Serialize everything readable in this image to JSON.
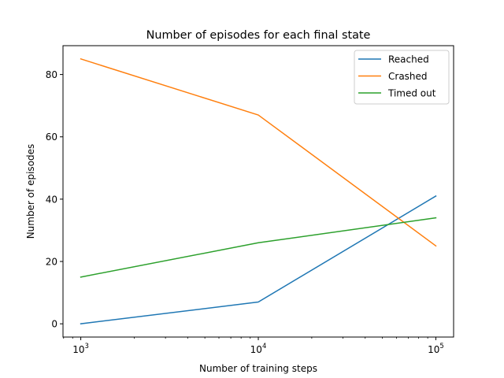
{
  "chart_data": {
    "type": "line",
    "title": "Number of episodes for each final state",
    "xlabel": "Number of training steps",
    "ylabel": "Number of episodes",
    "x_scale": "log",
    "x": [
      1000,
      10000,
      100000
    ],
    "x_ticks": [
      {
        "value": 1000,
        "base": "10",
        "exp": "3"
      },
      {
        "value": 10000,
        "base": "10",
        "exp": "4"
      },
      {
        "value": 100000,
        "base": "10",
        "exp": "5"
      }
    ],
    "y_ticks": [
      0,
      20,
      40,
      60,
      80
    ],
    "xlim": [
      794,
      125893
    ],
    "ylim": [
      -4.25,
      89.25
    ],
    "grid": false,
    "legend_position": "upper right",
    "series": [
      {
        "name": "Reached",
        "color": "#1f77b4",
        "values": [
          0,
          7,
          41
        ]
      },
      {
        "name": "Crashed",
        "color": "#ff7f0e",
        "values": [
          85,
          67,
          25
        ]
      },
      {
        "name": "Timed out",
        "color": "#2ca02c",
        "values": [
          15,
          26,
          34
        ]
      }
    ]
  }
}
